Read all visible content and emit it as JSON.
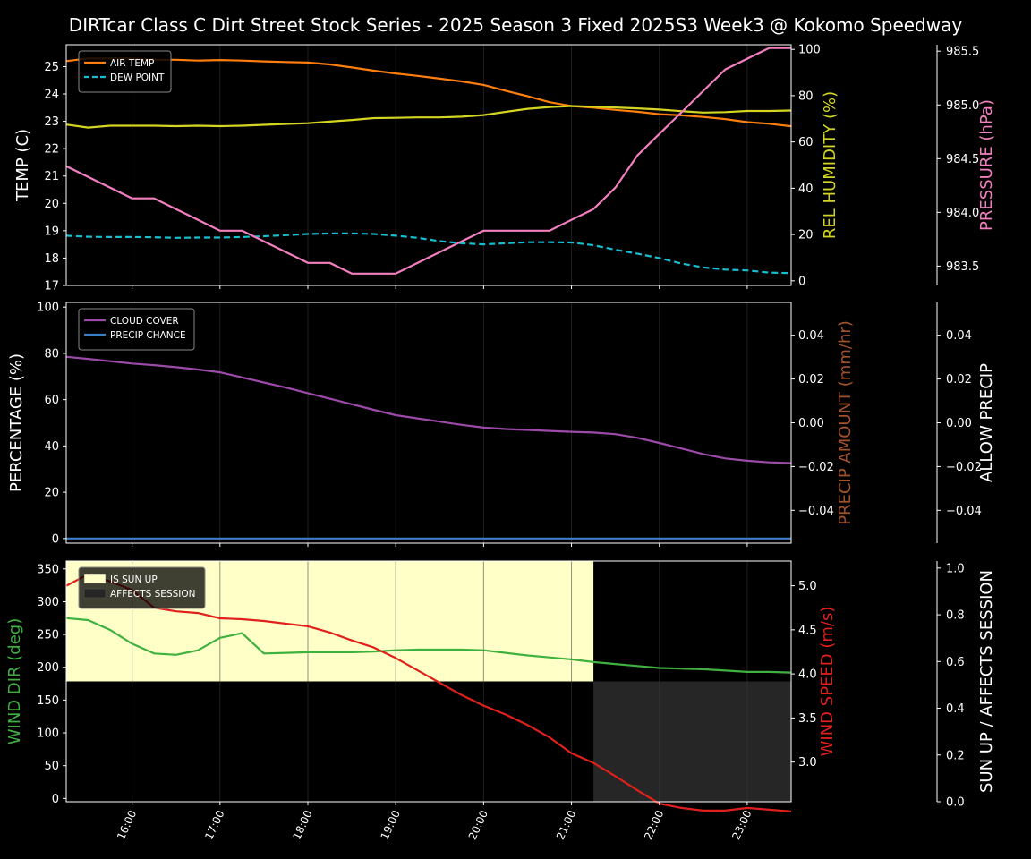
{
  "title": "DIRTcar Class C Dirt Street Stock Series - 2025 Season 3 Fixed 2025S3 Week3 @ Kokomo Speedway",
  "x_ticks": [
    "16:00",
    "17:00",
    "18:00",
    "19:00",
    "20:00",
    "21:00",
    "22:00",
    "23:00"
  ],
  "colors": {
    "background": "#000000",
    "air_temp": "#ff7f0e",
    "dew_point": "#17becf",
    "humidity": "#d4d422",
    "pressure": "#f27fbf",
    "cloud_cover": "#9b4aa8",
    "precip_chance": "#3a7fc4",
    "precip_amount": "#a0522d",
    "wind_dir": "#3fb13f",
    "wind_speed": "#e0201c",
    "sun_up": "#ffffc8",
    "affects_session": "#262626"
  },
  "chart_data": [
    {
      "type": "line",
      "panel": "weather",
      "x_range": [
        "15:15",
        "23:30"
      ],
      "left_axis": {
        "label": "TEMP (C)",
        "ylim": [
          17,
          25.8
        ],
        "ticks": [
          "17",
          "18",
          "19",
          "20",
          "21",
          "22",
          "23",
          "24",
          "25"
        ]
      },
      "right_axis": {
        "label": "REL HUMIDITY (%)",
        "ylim": [
          -2,
          102
        ],
        "ticks": [
          "0",
          "20",
          "40",
          "60",
          "80",
          "100"
        ]
      },
      "far_axis": {
        "label": "PRESSURE (hPa)",
        "ylim": [
          983.32,
          985.56
        ],
        "ticks": [
          "983.5",
          "984.0",
          "984.5",
          "985.0",
          "985.5"
        ]
      },
      "legend": {
        "position": "top-left",
        "items": [
          "AIR TEMP",
          "DEW POINT"
        ]
      },
      "x": [
        "15:15",
        "15:30",
        "15:45",
        "16:00",
        "16:15",
        "16:30",
        "16:45",
        "17:00",
        "17:15",
        "17:30",
        "17:45",
        "18:00",
        "18:15",
        "18:30",
        "18:45",
        "19:00",
        "19:15",
        "19:30",
        "19:45",
        "20:00",
        "20:15",
        "20:30",
        "20:45",
        "21:00",
        "21:15",
        "21:30",
        "21:45",
        "22:00",
        "22:15",
        "22:30",
        "22:45",
        "23:00",
        "23:15",
        "23:30"
      ],
      "series": [
        {
          "name": "AIR TEMP",
          "axis": "left",
          "style": "solid",
          "values": [
            25.2,
            25.3,
            25.3,
            25.3,
            25.25,
            25.25,
            25.22,
            25.24,
            25.22,
            25.19,
            25.17,
            25.15,
            25.08,
            24.97,
            24.85,
            24.75,
            24.66,
            24.56,
            24.46,
            24.33,
            24.12,
            23.92,
            23.7,
            23.56,
            23.5,
            23.42,
            23.35,
            23.26,
            23.22,
            23.16,
            23.08,
            22.97,
            22.91,
            22.82
          ]
        },
        {
          "name": "DEW POINT",
          "axis": "left",
          "style": "dashed",
          "values": [
            18.82,
            18.78,
            18.77,
            18.77,
            18.76,
            18.74,
            18.75,
            18.75,
            18.77,
            18.8,
            18.84,
            18.88,
            18.9,
            18.9,
            18.88,
            18.82,
            18.74,
            18.62,
            18.54,
            18.5,
            18.54,
            18.58,
            18.58,
            18.57,
            18.47,
            18.31,
            18.16,
            18.0,
            17.8,
            17.66,
            17.58,
            17.55,
            17.47,
            17.45
          ]
        },
        {
          "values": [
            67.5,
            66.2,
            67.0,
            67.0,
            67.0,
            66.8,
            67.0,
            66.8,
            67.0,
            67.4,
            67.8,
            68.1,
            68.8,
            69.5,
            70.3,
            70.4,
            70.6,
            70.6,
            70.9,
            71.6,
            73.0,
            74.3,
            75.1,
            75.5,
            75.2,
            74.9,
            74.5,
            74.0,
            73.3,
            72.7,
            72.9,
            73.4,
            73.4,
            73.6
          ],
          "axis": "right",
          "style": "solid"
        },
        {
          "values": [
            984.43,
            984.33,
            984.23,
            984.13,
            984.13,
            984.03,
            983.93,
            983.83,
            983.83,
            983.73,
            983.63,
            983.53,
            983.53,
            983.43,
            983.43,
            983.43,
            983.53,
            983.63,
            983.73,
            983.83,
            983.83,
            983.83,
            983.83,
            983.93,
            984.03,
            984.23,
            984.53,
            984.73,
            984.93,
            985.13,
            985.33,
            985.43,
            985.53,
            985.53
          ],
          "axis": "far",
          "style": "solid"
        }
      ]
    },
    {
      "type": "line",
      "panel": "clouds",
      "x_range": [
        "15:15",
        "23:30"
      ],
      "left_axis": {
        "label": "PERCENTAGE (%)",
        "ylim": [
          -2,
          102
        ],
        "ticks": [
          "0",
          "20",
          "40",
          "60",
          "80",
          "100"
        ]
      },
      "right_axis": {
        "label": "PRECIP AMOUNT (mm/hr)",
        "ylim": [
          -0.055,
          0.055
        ],
        "ticks": [
          "−0.04",
          "−0.02",
          "0.00",
          "0.02",
          "0.04"
        ]
      },
      "far_axis": {
        "label": "ALLOW PRECIP",
        "ylim": [
          -0.055,
          0.055
        ],
        "ticks": [
          "−0.04",
          "−0.02",
          "0.00",
          "0.02",
          "0.04"
        ]
      },
      "legend": {
        "position": "top-left",
        "items": [
          "CLOUD COVER",
          "PRECIP CHANCE"
        ]
      },
      "x": [
        "15:15",
        "15:30",
        "15:45",
        "16:00",
        "16:15",
        "16:30",
        "16:45",
        "17:00",
        "17:15",
        "17:30",
        "17:45",
        "18:00",
        "18:15",
        "18:30",
        "18:45",
        "19:00",
        "19:15",
        "19:30",
        "19:45",
        "20:00",
        "20:15",
        "20:30",
        "20:45",
        "21:00",
        "21:15",
        "21:30",
        "21:45",
        "22:00",
        "22:15",
        "22:30",
        "22:45",
        "23:00",
        "23:15",
        "23:30"
      ],
      "series": [
        {
          "name": "CLOUD COVER",
          "axis": "left",
          "values": [
            78.5,
            77.6,
            76.6,
            75.6,
            74.9,
            74.0,
            73.0,
            71.8,
            69.6,
            67.4,
            65.2,
            62.8,
            60.4,
            58.0,
            55.6,
            53.3,
            51.9,
            50.5,
            49.1,
            47.9,
            47.3,
            46.9,
            46.5,
            46.1,
            45.8,
            45.1,
            43.5,
            41.3,
            38.9,
            36.5,
            34.6,
            33.6,
            32.9,
            32.6
          ]
        },
        {
          "name": "PRECIP CHANCE",
          "axis": "left",
          "values": [
            0,
            0,
            0,
            0,
            0,
            0,
            0,
            0,
            0,
            0,
            0,
            0,
            0,
            0,
            0,
            0,
            0,
            0,
            0,
            0,
            0,
            0,
            0,
            0,
            0,
            0,
            0,
            0,
            0,
            0,
            0,
            0,
            0,
            0
          ]
        }
      ]
    },
    {
      "type": "line",
      "panel": "wind",
      "x_range": [
        "15:15",
        "23:30"
      ],
      "left_axis": {
        "label": "WIND DIR (deg)",
        "ylim": [
          -5,
          362
        ],
        "ticks": [
          "0",
          "50",
          "100",
          "150",
          "200",
          "250",
          "300",
          "350"
        ]
      },
      "right_axis": {
        "label": "WIND SPEED (m/s)",
        "ylim": [
          2.55,
          5.28
        ],
        "ticks": [
          "3.0",
          "3.5",
          "4.0",
          "4.5",
          "5.0"
        ]
      },
      "far_axis": {
        "label": "SUN UP / AFFECTS SESSION",
        "ylim": [
          0,
          1.03
        ],
        "ticks": [
          "0.0",
          "0.2",
          "0.4",
          "0.6",
          "0.8",
          "1.0"
        ]
      },
      "legend": {
        "position": "top-left",
        "items": [
          "IS SUN UP",
          "AFFECTS SESSION"
        ]
      },
      "bands": [
        {
          "name": "IS SUN UP",
          "from": "15:15",
          "to": "21:15",
          "ymin": 0.5,
          "ymax": 1.0
        },
        {
          "name": "AFFECTS SESSION",
          "from": "21:15",
          "to": "23:30",
          "ymin": 0.0,
          "ymax": 0.5
        }
      ],
      "x": [
        "15:15",
        "15:30",
        "15:45",
        "16:00",
        "16:15",
        "16:30",
        "16:45",
        "17:00",
        "17:15",
        "17:30",
        "17:45",
        "18:00",
        "18:15",
        "18:30",
        "18:45",
        "19:00",
        "19:15",
        "19:30",
        "19:45",
        "20:00",
        "20:15",
        "20:30",
        "20:45",
        "21:00",
        "21:15",
        "21:30",
        "21:45",
        "22:00",
        "22:15",
        "22:30",
        "22:45",
        "23:00",
        "23:15",
        "23:30"
      ],
      "series": [
        {
          "values": [
            275,
            272,
            257,
            236,
            221,
            219,
            226,
            245,
            252,
            221,
            222,
            223,
            223,
            223,
            224,
            226,
            227,
            227,
            227,
            226,
            222,
            218,
            215,
            212,
            208,
            205,
            202,
            199,
            198,
            197,
            195,
            193,
            193,
            192
          ],
          "axis": "left"
        },
        {
          "values": [
            5.0,
            5.13,
            5.05,
            4.95,
            4.75,
            4.71,
            4.69,
            4.63,
            4.62,
            4.6,
            4.57,
            4.54,
            4.47,
            4.38,
            4.3,
            4.18,
            4.04,
            3.9,
            3.76,
            3.64,
            3.54,
            3.42,
            3.28,
            3.1,
            2.99,
            2.84,
            2.68,
            2.53,
            2.48,
            2.45,
            2.45,
            2.48,
            2.46,
            2.44
          ],
          "axis": "right"
        }
      ]
    }
  ]
}
